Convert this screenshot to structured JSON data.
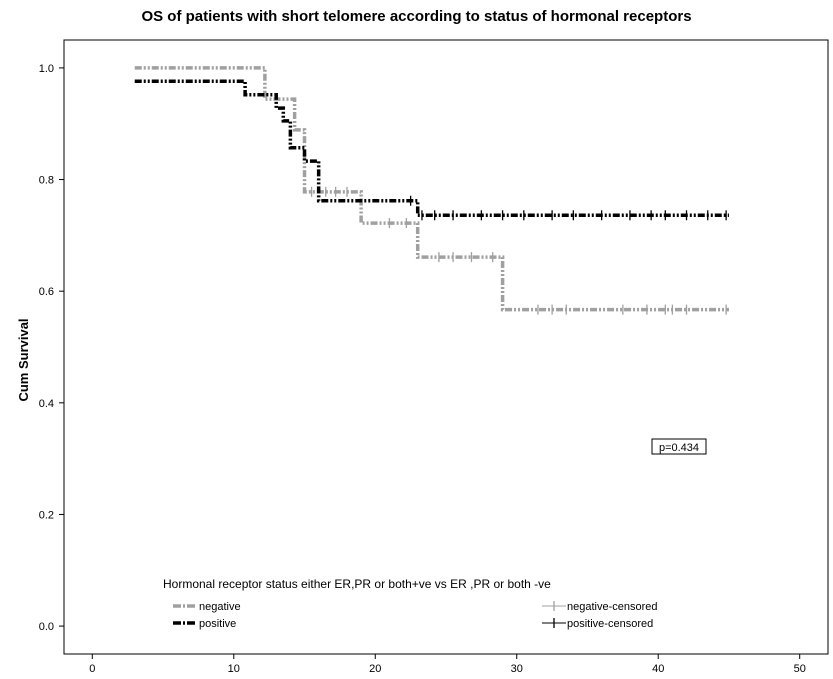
{
  "chart_data": {
    "type": "line",
    "title": "OS of patients with short telomere according to  status of hormonal receptors",
    "xlabel": "",
    "ylabel": "Cum Survival",
    "xlim": [
      -2,
      52
    ],
    "ylim": [
      -0.05,
      1.05
    ],
    "x_ticks": [
      0,
      10,
      20,
      30,
      40,
      50
    ],
    "y_ticks": [
      0.0,
      0.2,
      0.4,
      0.6,
      0.8,
      1.0
    ],
    "x_tick_labels": [
      "0",
      "10",
      "20",
      "30",
      "40",
      "50"
    ],
    "y_tick_labels": [
      "0.0",
      "0.2",
      "0.4",
      "0.6",
      "0.8",
      "1.0"
    ],
    "legend_title": "Hormonal receptor status either ER,PR or both+ve vs  ER ,PR or both -ve",
    "legend_placement": "bottom",
    "annotation": "p=0.434",
    "series": [
      {
        "name": "negative",
        "censored_name": "negative-censored",
        "color": "#a0a0a0",
        "steps": [
          [
            3,
            1.0
          ],
          [
            12.2,
            0.944
          ],
          [
            14.3,
            0.889
          ],
          [
            15.0,
            0.778
          ],
          [
            19.0,
            0.722
          ],
          [
            23.0,
            0.661
          ],
          [
            29.0,
            0.567
          ],
          [
            45,
            0.567
          ]
        ],
        "censored": [
          [
            15.5,
            0.778
          ],
          [
            16.5,
            0.778
          ],
          [
            17.2,
            0.778
          ],
          [
            18.0,
            0.778
          ],
          [
            21.0,
            0.722
          ],
          [
            22.2,
            0.722
          ],
          [
            24.5,
            0.661
          ],
          [
            25.5,
            0.661
          ],
          [
            26.8,
            0.661
          ],
          [
            28.3,
            0.661
          ],
          [
            31.5,
            0.567
          ],
          [
            32.5,
            0.567
          ],
          [
            33.5,
            0.567
          ],
          [
            37.5,
            0.567
          ],
          [
            39.2,
            0.567
          ],
          [
            40.5,
            0.567
          ],
          [
            41.0,
            0.567
          ],
          [
            42.0,
            0.567
          ],
          [
            44.8,
            0.567
          ]
        ]
      },
      {
        "name": "positive",
        "censored_name": "positive-censored",
        "color": "#000000",
        "steps": [
          [
            3,
            0.976
          ],
          [
            10.8,
            0.952
          ],
          [
            13.0,
            0.928
          ],
          [
            13.5,
            0.905
          ],
          [
            14.0,
            0.857
          ],
          [
            15.0,
            0.833
          ],
          [
            16.0,
            0.762
          ],
          [
            23.0,
            0.736
          ],
          [
            45,
            0.736
          ]
        ],
        "censored": [
          [
            22.5,
            0.762
          ],
          [
            23.3,
            0.736
          ],
          [
            24.2,
            0.736
          ],
          [
            25.5,
            0.736
          ],
          [
            27.5,
            0.736
          ],
          [
            29.0,
            0.736
          ],
          [
            30.5,
            0.736
          ],
          [
            32.5,
            0.736
          ],
          [
            34.0,
            0.736
          ],
          [
            36.0,
            0.736
          ],
          [
            38.0,
            0.736
          ],
          [
            39.5,
            0.736
          ],
          [
            40.5,
            0.736
          ],
          [
            42.0,
            0.736
          ],
          [
            43.5,
            0.736
          ],
          [
            44.8,
            0.736
          ]
        ]
      }
    ]
  }
}
